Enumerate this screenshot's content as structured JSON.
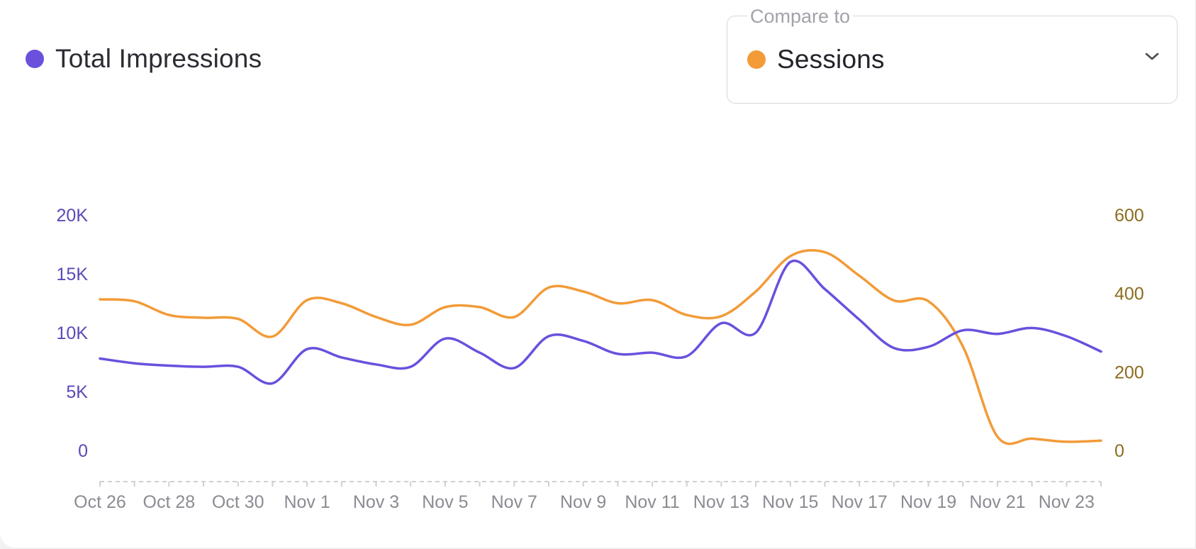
{
  "legend": {
    "label": "Total Impressions",
    "color": "#6a50dd",
    "icon": "circle-dot-icon"
  },
  "compare": {
    "legend_label": "Compare to",
    "selected": "Sessions",
    "color": "#f29b38",
    "icon": "chevron-down-icon"
  },
  "chart_data": {
    "type": "line",
    "x": [
      "Oct 26",
      "Oct 27",
      "Oct 28",
      "Oct 29",
      "Oct 30",
      "Oct 31",
      "Nov 1",
      "Nov 2",
      "Nov 3",
      "Nov 4",
      "Nov 5",
      "Nov 6",
      "Nov 7",
      "Nov 8",
      "Nov 9",
      "Nov 10",
      "Nov 11",
      "Nov 12",
      "Nov 13",
      "Nov 14",
      "Nov 15",
      "Nov 16",
      "Nov 17",
      "Nov 18",
      "Nov 19",
      "Nov 20",
      "Nov 21",
      "Nov 22",
      "Nov 23",
      "Nov 24"
    ],
    "xtick_labels": [
      "Oct 26",
      "Oct 28",
      "Oct 30",
      "Nov 1",
      "Nov 3",
      "Nov 5",
      "Nov 7",
      "Nov 9",
      "Nov 11",
      "Nov 13",
      "Nov 15",
      "Nov 17",
      "Nov 19",
      "Nov 21",
      "Nov 23"
    ],
    "series": [
      {
        "name": "Total Impressions",
        "axis": "left",
        "color": "#6a50dd",
        "values": [
          7800,
          7400,
          7200,
          7100,
          7100,
          5700,
          8600,
          7900,
          7300,
          7100,
          9500,
          8300,
          7000,
          9700,
          9300,
          8200,
          8300,
          8000,
          10800,
          10000,
          16000,
          13700,
          11100,
          8700,
          8800,
          10200,
          9900,
          10400,
          9700,
          8400
        ]
      },
      {
        "name": "Sessions",
        "axis": "right",
        "color": "#f29b38",
        "values": [
          385,
          380,
          345,
          338,
          335,
          290,
          383,
          375,
          340,
          320,
          365,
          365,
          340,
          415,
          405,
          375,
          383,
          345,
          342,
          405,
          495,
          505,
          445,
          382,
          380,
          265,
          35,
          30,
          22,
          25
        ]
      }
    ],
    "y_left": {
      "ticks": [
        "0",
        "5K",
        "10K",
        "15K",
        "20K"
      ],
      "tick_values": [
        0,
        5000,
        10000,
        15000,
        20000
      ],
      "range": [
        0,
        20000
      ],
      "color": "#5a4ab8"
    },
    "y_right": {
      "ticks": [
        "0",
        "200",
        "400",
        "600"
      ],
      "tick_values": [
        0,
        200,
        400,
        600
      ],
      "range": [
        0,
        600
      ],
      "color": "#8c6d1e"
    },
    "grid": false
  }
}
